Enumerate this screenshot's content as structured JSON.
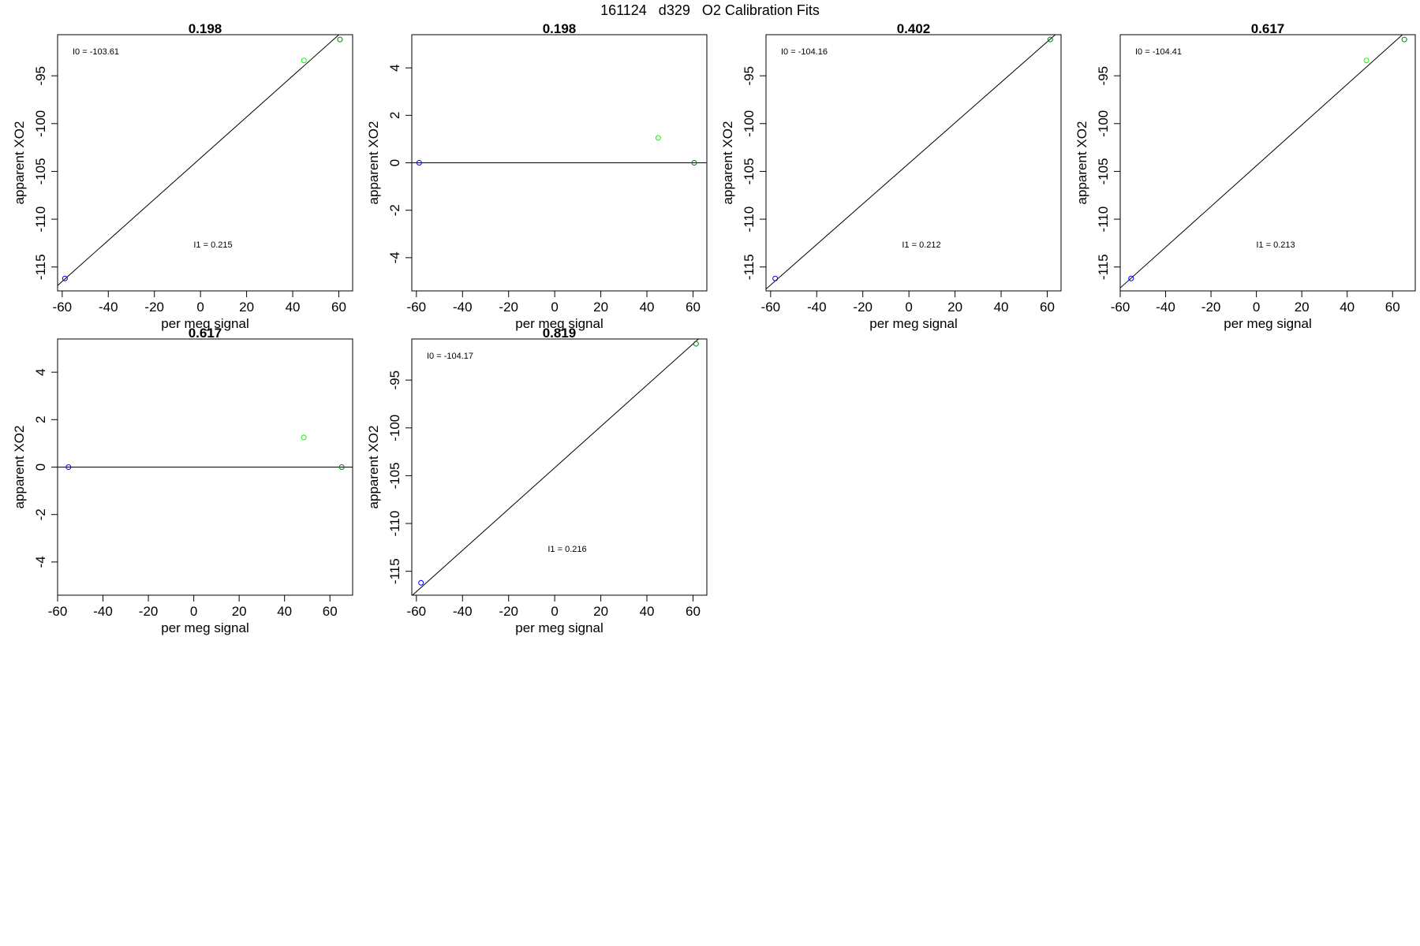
{
  "figure_title": "161124   d329   O2 Calibration Fits",
  "colors": {
    "axis": "#000000",
    "fit_line": "#000000",
    "point_low": "#0000ff",
    "point_mid": "#00ff00",
    "point_high": "#008000"
  },
  "chart_data": [
    {
      "type": "scatter",
      "title": "0.198",
      "xlabel": "per meg signal",
      "ylabel": "apparent XO2",
      "xlim": [
        -62,
        66
      ],
      "ylim": [
        -117.5,
        -90.7
      ],
      "xticks": [
        -60,
        -40,
        -20,
        0,
        20,
        40,
        60
      ],
      "yticks": [
        -115,
        -110,
        -105,
        -100,
        -95
      ],
      "points": [
        {
          "x": -58.8,
          "y": -116.2,
          "color": "#0000ff"
        },
        {
          "x": 44.9,
          "y": -93.4,
          "color": "#00ff00"
        },
        {
          "x": 60.5,
          "y": -91.2,
          "color": "#008000"
        }
      ],
      "fit_line": {
        "type": "linear",
        "intercept": -103.61,
        "slope": 0.215
      },
      "annotations": {
        "i0": "I0 =  -103.61",
        "i1": "I1 =  0.215"
      }
    },
    {
      "type": "scatter",
      "title": "0.198",
      "xlabel": "per meg signal",
      "ylabel": "apparent XO2",
      "xlim": [
        -62,
        66
      ],
      "ylim": [
        -5.4,
        5.4
      ],
      "xticks": [
        -60,
        -40,
        -20,
        0,
        20,
        40,
        60
      ],
      "yticks": [
        -4,
        -2,
        0,
        2,
        4
      ],
      "points": [
        {
          "x": -58.8,
          "y": 0.0,
          "color": "#0000ff"
        },
        {
          "x": 44.9,
          "y": 1.05,
          "color": "#00ff00"
        },
        {
          "x": 60.5,
          "y": 0.0,
          "color": "#008000"
        }
      ],
      "fit_line": {
        "type": "horizontal",
        "intercept": 0,
        "slope": 0
      }
    },
    {
      "type": "scatter",
      "title": "0.402",
      "xlabel": "per meg signal",
      "ylabel": "apparent XO2",
      "xlim": [
        -62,
        66
      ],
      "ylim": [
        -117.5,
        -90.7
      ],
      "xticks": [
        -60,
        -40,
        -20,
        0,
        20,
        40,
        60
      ],
      "yticks": [
        -115,
        -110,
        -105,
        -100,
        -95
      ],
      "points": [
        {
          "x": -58.0,
          "y": -116.2,
          "color": "#0000ff"
        },
        {
          "x": 61.3,
          "y": -91.2,
          "color": "#008000"
        }
      ],
      "fit_line": {
        "type": "linear",
        "intercept": -104.16,
        "slope": 0.212
      },
      "annotations": {
        "i0": "I0 =  -104.16",
        "i1": "I1 =  0.212"
      }
    },
    {
      "type": "scatter",
      "title": "0.617",
      "xlabel": "per meg signal",
      "ylabel": "apparent XO2",
      "xlim": [
        -60,
        70
      ],
      "ylim": [
        -117.5,
        -90.7
      ],
      "xticks": [
        -60,
        -40,
        -20,
        0,
        20,
        40,
        60
      ],
      "yticks": [
        -115,
        -110,
        -105,
        -100,
        -95
      ],
      "points": [
        {
          "x": -55.2,
          "y": -116.2,
          "color": "#0000ff"
        },
        {
          "x": 48.5,
          "y": -93.4,
          "color": "#00ff00"
        },
        {
          "x": 65.2,
          "y": -91.2,
          "color": "#008000"
        }
      ],
      "fit_line": {
        "type": "linear",
        "intercept": -104.41,
        "slope": 0.213
      },
      "annotations": {
        "i0": "I0 =  -104.41",
        "i1": "I1 =  0.213"
      }
    },
    {
      "type": "scatter",
      "title": "0.617",
      "xlabel": "per meg signal",
      "ylabel": "apparent XO2",
      "xlim": [
        -60,
        70
      ],
      "ylim": [
        -5.4,
        5.4
      ],
      "xticks": [
        -60,
        -40,
        -20,
        0,
        20,
        40,
        60
      ],
      "yticks": [
        -4,
        -2,
        0,
        2,
        4
      ],
      "points": [
        {
          "x": -55.2,
          "y": 0.0,
          "color": "#0000ff"
        },
        {
          "x": 48.5,
          "y": 1.25,
          "color": "#00ff00"
        },
        {
          "x": 65.2,
          "y": 0.0,
          "color": "#008000"
        }
      ],
      "fit_line": {
        "type": "horizontal",
        "intercept": 0,
        "slope": 0
      }
    },
    {
      "type": "scatter",
      "title": "0.819",
      "xlabel": "per meg signal",
      "ylabel": "apparent XO2",
      "xlim": [
        -62,
        66
      ],
      "ylim": [
        -117.5,
        -90.7
      ],
      "xticks": [
        -60,
        -40,
        -20,
        0,
        20,
        40,
        60
      ],
      "yticks": [
        -115,
        -110,
        -105,
        -100,
        -95
      ],
      "points": [
        {
          "x": -58.0,
          "y": -116.2,
          "color": "#0000ff"
        },
        {
          "x": 61.3,
          "y": -91.2,
          "color": "#008000"
        }
      ],
      "fit_line": {
        "type": "linear",
        "intercept": -104.17,
        "slope": 0.216
      },
      "annotations": {
        "i0": "I0 =  -104.17",
        "i1": "I1 =  0.216"
      }
    }
  ]
}
